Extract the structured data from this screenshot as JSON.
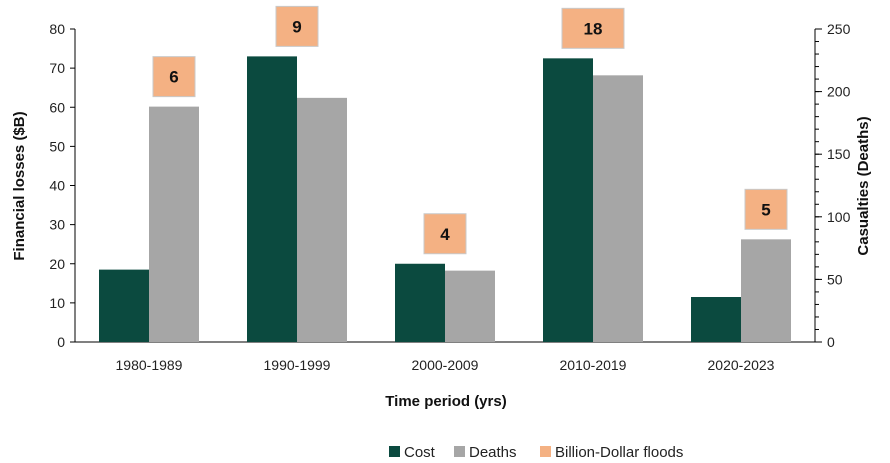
{
  "chart_data": {
    "type": "bar",
    "categories": [
      "1980-1989",
      "1990-1999",
      "2000-2009",
      "2010-2019",
      "2020-2023"
    ],
    "series": [
      {
        "name": "Cost",
        "axis": "left",
        "color": "#0b4a3f",
        "values": [
          18.5,
          73,
          20,
          72.5,
          11.5
        ]
      },
      {
        "name": "Deaths",
        "axis": "right",
        "color": "#a6a6a6",
        "values": [
          188,
          195,
          57,
          213,
          82
        ]
      }
    ],
    "annotations": {
      "name": "Billion-Dollar floods",
      "color": "#f4b183",
      "border": "#c9c9c9",
      "values": [
        6,
        9,
        4,
        18,
        5
      ]
    },
    "xlabel": "Time period (yrs)",
    "ylabel_left": "Financial losses ($B)",
    "ylabel_right": "Casualties (Deaths)",
    "ylim_left": [
      0,
      80
    ],
    "yticks_left": [
      0,
      10,
      20,
      30,
      40,
      50,
      60,
      70,
      80
    ],
    "ylim_right": [
      0,
      250
    ],
    "yticks_right": [
      0,
      50,
      100,
      150,
      200,
      250
    ],
    "grid": false,
    "legend": "bottom-center"
  }
}
